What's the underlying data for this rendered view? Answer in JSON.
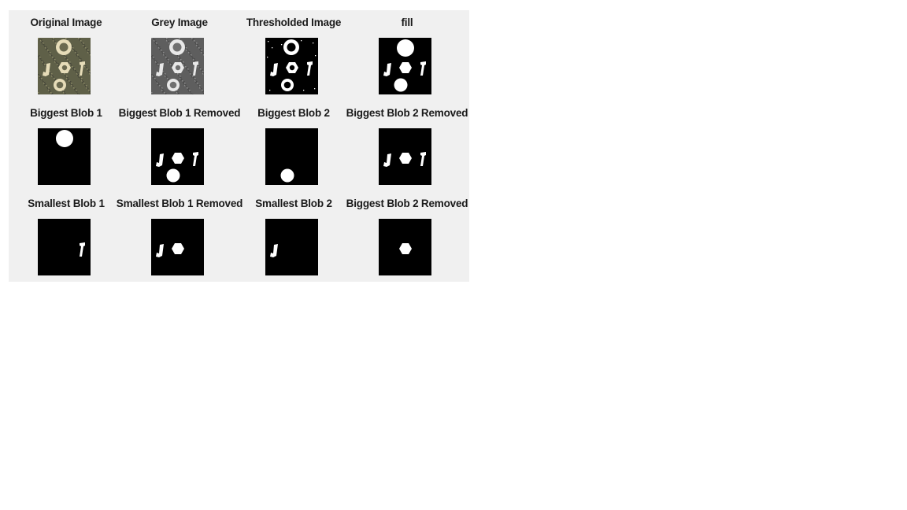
{
  "figure": {
    "background": "#f0f0f0",
    "panels": [
      {
        "title": "Original Image",
        "variant": "original",
        "objects": [
          "ring-top",
          "bolt",
          "hex-nut",
          "screw",
          "ring-bottom"
        ]
      },
      {
        "title": "Grey Image",
        "variant": "grey",
        "objects": [
          "ring-top",
          "bolt",
          "hex-nut",
          "screw",
          "ring-bottom"
        ]
      },
      {
        "title": "Thresholded Image",
        "variant": "binary",
        "objects": [
          "ring-top",
          "bolt",
          "hex-nut",
          "screw",
          "ring-bottom"
        ]
      },
      {
        "title": "fill",
        "variant": "binary",
        "objects": [
          "disc-top",
          "bolt",
          "hex-nut-filled",
          "screw",
          "disc-bottom"
        ]
      },
      {
        "title": "Biggest Blob 1",
        "variant": "binary",
        "objects": [
          "disc-top"
        ]
      },
      {
        "title": "Biggest Blob 1 Removed",
        "variant": "binary",
        "objects": [
          "bolt",
          "hex-nut-filled",
          "screw",
          "disc-bottom"
        ]
      },
      {
        "title": "Biggest Blob 2",
        "variant": "binary",
        "objects": [
          "disc-bottom"
        ]
      },
      {
        "title": "Biggest Blob 2 Removed",
        "variant": "binary",
        "objects": [
          "bolt",
          "hex-nut-filled",
          "screw"
        ]
      },
      {
        "title": "Smallest Blob 1",
        "variant": "binary",
        "objects": [
          "screw"
        ]
      },
      {
        "title": "Smallest Blob 1 Removed",
        "variant": "binary",
        "objects": [
          "bolt",
          "hex-nut-filled"
        ]
      },
      {
        "title": "Smallest Blob 2",
        "variant": "binary",
        "objects": [
          "bolt"
        ]
      },
      {
        "title": "Biggest Blob 2 Removed",
        "variant": "binary",
        "objects": [
          "hex-nut-filled"
        ]
      }
    ]
  }
}
